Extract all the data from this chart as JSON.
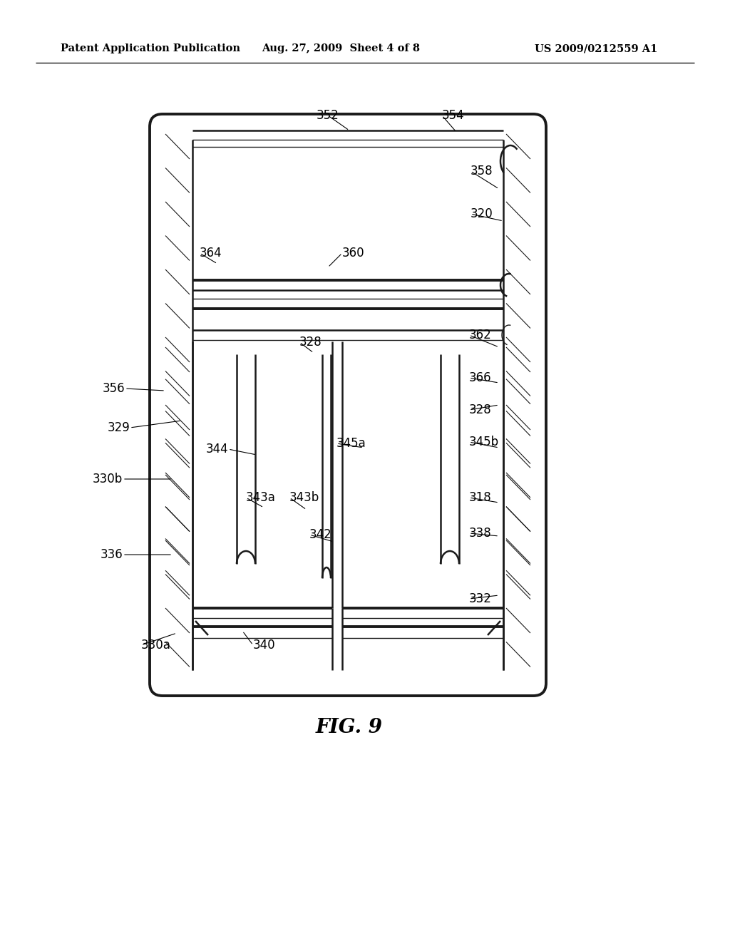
{
  "bg_color": "#ffffff",
  "header_left": "Patent Application Publication",
  "header_center": "Aug. 27, 2009  Sheet 4 of 8",
  "header_right": "US 2009/0212559 A1",
  "fig_label": "FIG. 9",
  "header_fontsize": 10.5,
  "fig_label_fontsize": 20,
  "label_fontsize": 12,
  "line_color": "#1a1a1a"
}
